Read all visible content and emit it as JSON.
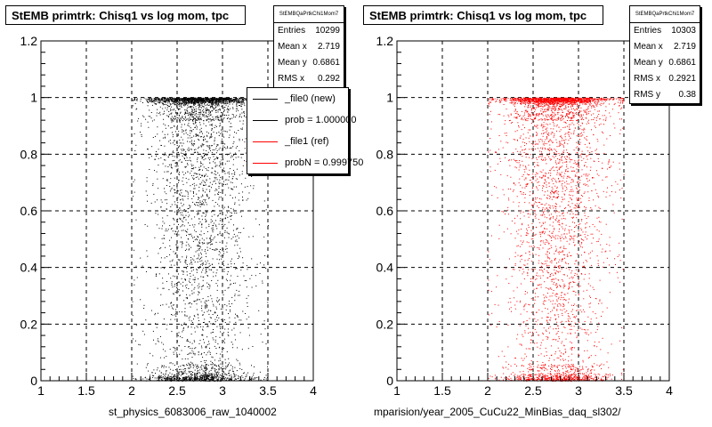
{
  "chart_data": [
    {
      "type": "scatter",
      "title": "StEMB primtrk: Chisq1 vs log mom, tpc",
      "xlabel": "st_physics_6083006_raw_1040002",
      "ylabel": "",
      "xlim": [
        1,
        4
      ],
      "ylim": [
        0,
        1.2
      ],
      "x_ticks": [
        "1",
        "1.5",
        "2",
        "2.5",
        "3",
        "3.5",
        "4"
      ],
      "y_ticks": [
        "0",
        "0.2",
        "0.4",
        "0.6",
        "0.8",
        "1",
        "1.2"
      ],
      "grid": true,
      "marker_color": "#000000",
      "stats": {
        "header": "StEMBQaPrtkChi1Mom7",
        "rows": [
          {
            "label": "Entries",
            "value": "10299"
          },
          {
            "label": "Mean x",
            "value": "2.719"
          },
          {
            "label": "Mean y",
            "value": "0.6861"
          },
          {
            "label": "RMS x",
            "value": "0.292"
          }
        ]
      },
      "legend": {
        "placement": "top-right",
        "entries": [
          {
            "label": "_file0 (new)",
            "color": "#000000"
          },
          {
            "label": "prob = 1.000000",
            "color": "#000000"
          },
          {
            "label": "_file1 (ref)",
            "color": "#ff0000"
          },
          {
            "label": "probN = 0.999750",
            "color": "#ff0000"
          }
        ]
      },
      "distribution": {
        "x_range": [
          2.0,
          3.5
        ],
        "x_core": [
          2.5,
          3.0
        ],
        "y_dense_bands": [
          0.0,
          1.0
        ],
        "n_points": 10299
      }
    },
    {
      "type": "scatter",
      "title": "StEMB primtrk: Chisq1 vs log mom, tpc",
      "xlabel": "mparision/year_2005_CuCu22_MinBias_daq_sl302/",
      "ylabel": "",
      "xlim": [
        1,
        4
      ],
      "ylim": [
        0,
        1.2
      ],
      "x_ticks": [
        "1",
        "1.5",
        "2",
        "2.5",
        "3",
        "3.5",
        "4"
      ],
      "y_ticks": [
        "0",
        "0.2",
        "0.4",
        "0.6",
        "0.8",
        "1",
        "1.2"
      ],
      "grid": true,
      "marker_color": "#ff0000",
      "stats": {
        "header": "StEMBQaPrtkChi1Mom7",
        "rows": [
          {
            "label": "Entries",
            "value": "10303"
          },
          {
            "label": "Mean x",
            "value": "2.719"
          },
          {
            "label": "Mean y",
            "value": "0.6861"
          },
          {
            "label": "RMS x",
            "value": "0.2921"
          },
          {
            "label": "RMS y",
            "value": "0.38"
          }
        ]
      },
      "distribution": {
        "x_range": [
          2.0,
          3.5
        ],
        "x_core": [
          2.5,
          3.0
        ],
        "y_dense_bands": [
          0.0,
          1.0
        ],
        "n_points": 10303
      }
    }
  ]
}
